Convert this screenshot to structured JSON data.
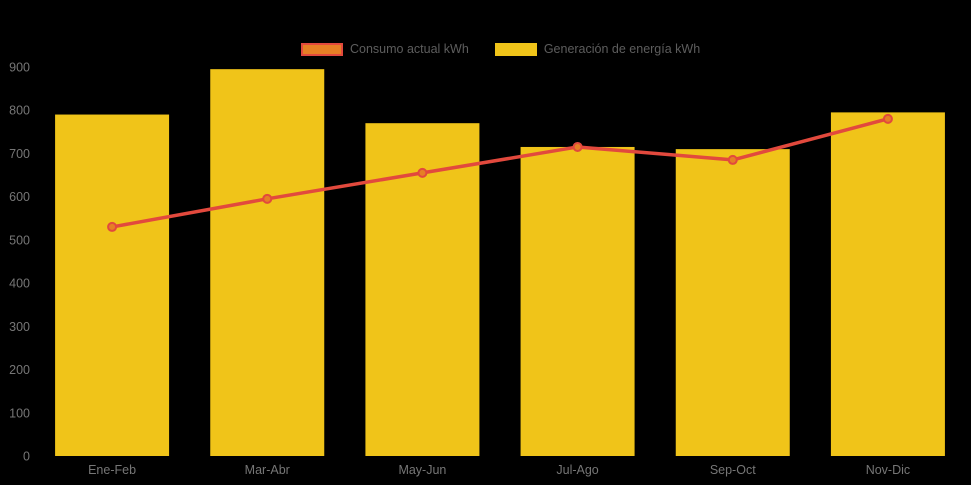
{
  "colors": {
    "background": "#000000",
    "bar": "#F0C419",
    "line": "#E2493D",
    "marker_fill": "#E67F25",
    "axis_label": "#767676",
    "legend_label": "#5D5D5D"
  },
  "legend": {
    "items": [
      {
        "label": "Consumo actual kWh",
        "swatch_fill": "#E67F25",
        "swatch_border": "#E2493D"
      },
      {
        "label": "Generación de energía kWh",
        "swatch_fill": "#F0C419",
        "swatch_border": "#F0C419"
      }
    ]
  },
  "chart_data": {
    "type": "bar",
    "subtype": "bar-line-combo",
    "title": "",
    "xlabel": "",
    "ylabel": "",
    "categories": [
      "Ene-Feb",
      "Mar-Abr",
      "May-Jun",
      "Jul-Ago",
      "Sep-Oct",
      "Nov-Dic"
    ],
    "series": [
      {
        "name": "Generación de energía kWh",
        "type": "bar",
        "color": "#F0C419",
        "values": [
          790,
          895,
          770,
          715,
          710,
          795
        ]
      },
      {
        "name": "Consumo actual kWh",
        "type": "line",
        "color": "#E2493D",
        "marker_fill": "#E67F25",
        "values": [
          530,
          595,
          655,
          715,
          685,
          780
        ]
      }
    ],
    "y_ticks": [
      0,
      100,
      200,
      300,
      400,
      500,
      600,
      700,
      800,
      900
    ],
    "ylim": [
      0,
      900
    ],
    "grid": false,
    "legend_position": "top-center",
    "background": "#000000"
  }
}
